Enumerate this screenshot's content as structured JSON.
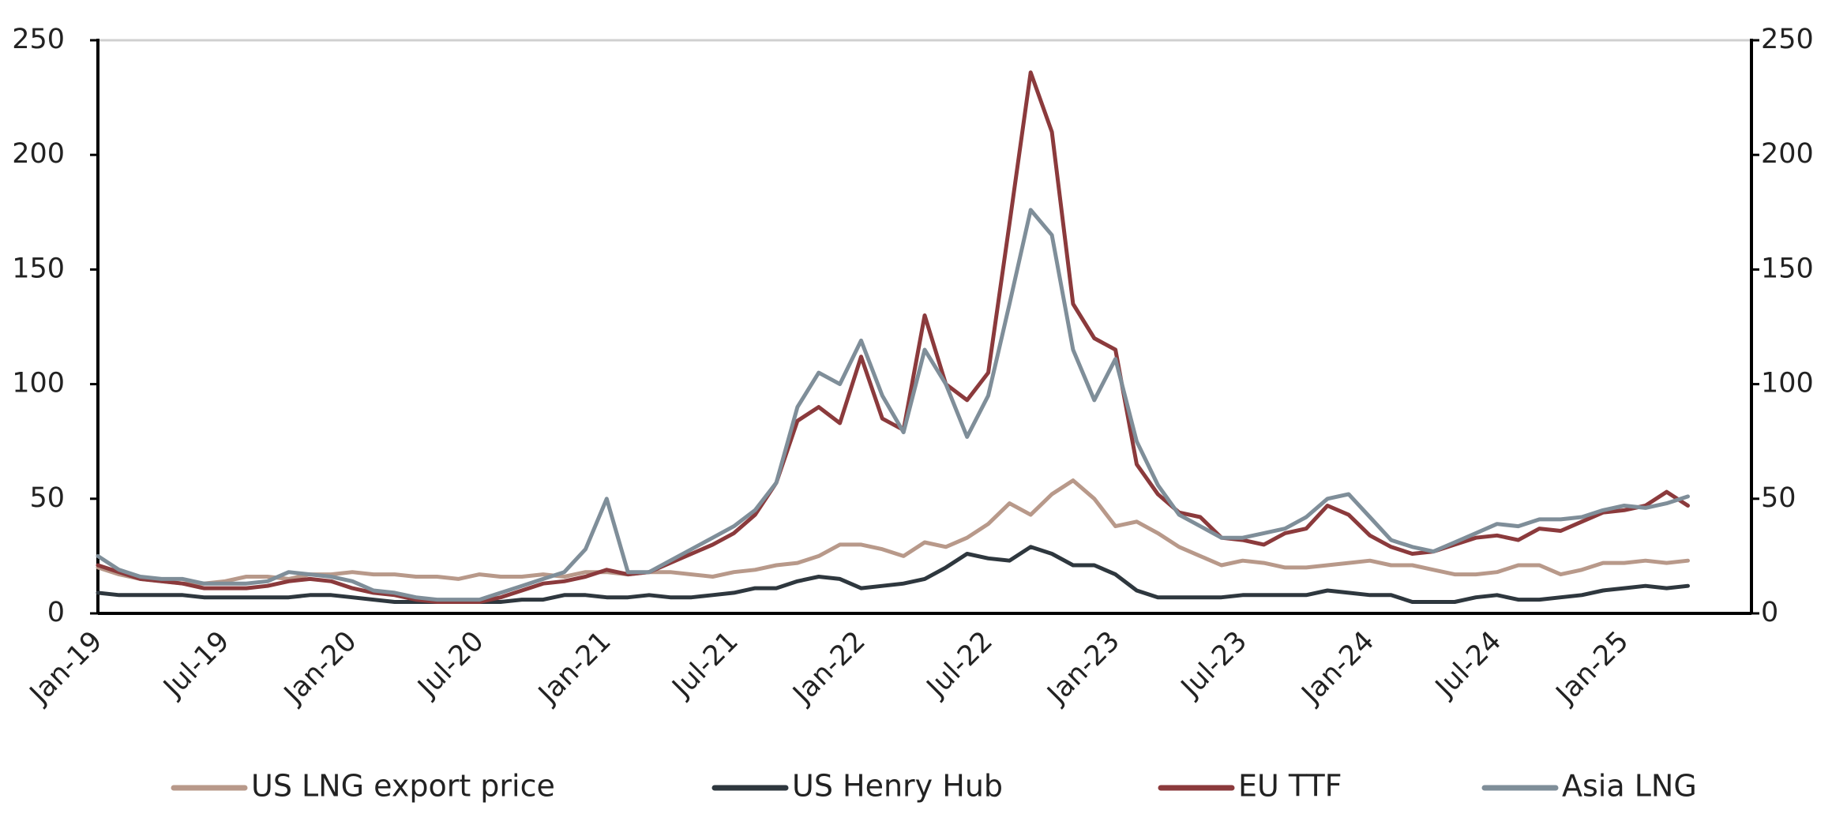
{
  "chart_data": {
    "type": "line",
    "categories": [
      "Jan-19",
      null,
      null,
      null,
      null,
      null,
      "Jul-19",
      null,
      null,
      null,
      null,
      null,
      "Jan-20",
      null,
      null,
      null,
      null,
      null,
      "Jul-20",
      null,
      null,
      null,
      null,
      null,
      "Jan-21",
      null,
      null,
      null,
      null,
      null,
      "Jul-21",
      null,
      null,
      null,
      null,
      null,
      "Jan-22",
      null,
      null,
      null,
      null,
      null,
      "Jul-22",
      null,
      null,
      null,
      null,
      null,
      "Jan-23",
      null,
      null,
      null,
      null,
      null,
      "Jul-23",
      null,
      null,
      null,
      null,
      null,
      "Jan-24",
      null,
      null,
      null,
      null,
      null,
      "Jul-24",
      null,
      null,
      null,
      null,
      null,
      "Jan-25",
      null,
      null,
      null
    ],
    "series": [
      {
        "name": "US LNG export price",
        "color": "#b8998a",
        "values": [
          20,
          17,
          15,
          14,
          13,
          13,
          14,
          16,
          16,
          15,
          17,
          17,
          18,
          17,
          17,
          16,
          16,
          15,
          17,
          16,
          16,
          17,
          16,
          18,
          18,
          17,
          18,
          18,
          17,
          16,
          18,
          19,
          21,
          22,
          25,
          30,
          30,
          28,
          25,
          31,
          29,
          33,
          39,
          48,
          43,
          52,
          58,
          50,
          38,
          40,
          35,
          29,
          25,
          21,
          23,
          22,
          20,
          20,
          21,
          22,
          23,
          21,
          21,
          19,
          17,
          17,
          18,
          21,
          21,
          17,
          19,
          22,
          22,
          23,
          22,
          23
        ]
      },
      {
        "name": "US Henry Hub",
        "color": "#2e373e",
        "values": [
          9,
          8,
          8,
          8,
          8,
          7,
          7,
          7,
          7,
          7,
          8,
          8,
          7,
          6,
          5,
          5,
          5,
          5,
          5,
          5,
          6,
          6,
          8,
          8,
          7,
          7,
          8,
          7,
          7,
          8,
          9,
          11,
          11,
          14,
          16,
          15,
          11,
          12,
          13,
          15,
          20,
          26,
          24,
          23,
          29,
          26,
          21,
          21,
          17,
          10,
          7,
          7,
          7,
          7,
          8,
          8,
          8,
          8,
          10,
          9,
          8,
          8,
          5,
          5,
          5,
          7,
          8,
          6,
          6,
          7,
          8,
          10,
          11,
          12,
          11,
          12
        ]
      },
      {
        "name": "EU TTF",
        "color": "#8b3a3c",
        "values": [
          21,
          18,
          15,
          14,
          13,
          11,
          11,
          11,
          12,
          14,
          15,
          14,
          11,
          9,
          8,
          6,
          5,
          5,
          5,
          7,
          10,
          13,
          14,
          16,
          19,
          17,
          18,
          22,
          26,
          30,
          35,
          43,
          57,
          84,
          90,
          83,
          112,
          85,
          80,
          130,
          100,
          93,
          105,
          170,
          236,
          210,
          135,
          120,
          115,
          65,
          52,
          44,
          42,
          33,
          32,
          30,
          35,
          37,
          47,
          43,
          34,
          29,
          26,
          27,
          30,
          33,
          34,
          32,
          37,
          36,
          40,
          44,
          45,
          47,
          53,
          47
        ]
      },
      {
        "name": "Asia LNG",
        "color": "#7f8e99",
        "values": [
          25,
          19,
          16,
          15,
          15,
          13,
          13,
          13,
          14,
          18,
          17,
          16,
          14,
          10,
          9,
          7,
          6,
          6,
          6,
          9,
          12,
          15,
          18,
          28,
          50,
          18,
          18,
          23,
          28,
          33,
          38,
          45,
          57,
          90,
          105,
          100,
          119,
          95,
          79,
          115,
          100,
          77,
          95,
          135,
          176,
          165,
          115,
          93,
          111,
          75,
          56,
          43,
          38,
          33,
          33,
          35,
          37,
          42,
          50,
          52,
          42,
          32,
          29,
          27,
          31,
          35,
          39,
          38,
          41,
          41,
          42,
          45,
          47,
          46,
          48,
          51
        ]
      }
    ],
    "ylim": [
      0,
      250
    ],
    "yticks": [
      0,
      50,
      100,
      150,
      200,
      250
    ],
    "y2lim": [
      0,
      250
    ],
    "y2ticks": [
      0,
      50,
      100,
      150,
      200,
      250
    ],
    "legend": "bottom"
  }
}
